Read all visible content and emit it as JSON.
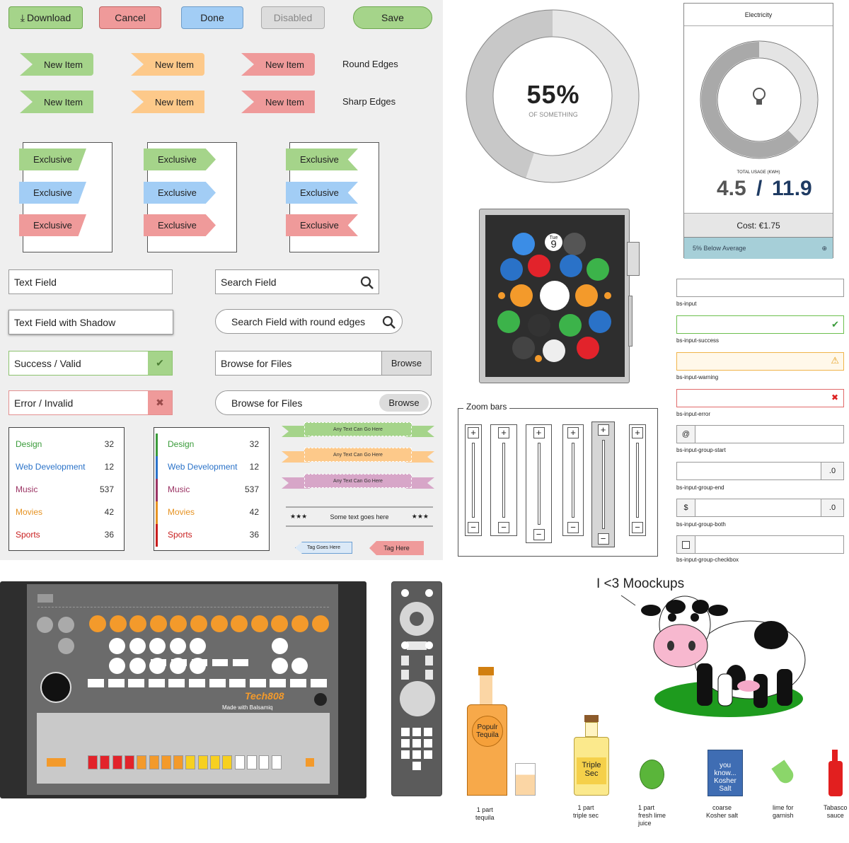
{
  "buttons": {
    "download": "Download",
    "cancel": "Cancel",
    "done": "Done",
    "disabled": "Disabled",
    "save": "Save"
  },
  "tags": {
    "label": "New Item",
    "round": "Round Edges",
    "sharp": "Sharp Edges"
  },
  "exclusive": "Exclusive",
  "fields": {
    "text": "Text Field",
    "search": "Search Field",
    "shadow": "Text Field with Shadow",
    "search_round": "Search Field with round edges",
    "success": "Success / Valid",
    "browse1": "Browse for Files",
    "browse_btn": "Browse",
    "error": "Error / Invalid",
    "browse2": "Browse for Files"
  },
  "list": [
    {
      "label": "Design",
      "count": "32",
      "color": "#3a9b3a"
    },
    {
      "label": "Web Development",
      "count": "12",
      "color": "#2a72c8"
    },
    {
      "label": "Music",
      "count": "537",
      "color": "#9b3464"
    },
    {
      "label": "Movies",
      "count": "42",
      "color": "#e69323"
    },
    {
      "label": "Sports",
      "count": "36",
      "color": "#c81e1e"
    }
  ],
  "ribbons": {
    "text": "Any Text Can Go Here",
    "stars": "Some text goes here",
    "tag1": "Tag Goes Here",
    "tag2": "Tag Here"
  },
  "donut": {
    "value": "55%",
    "sub": "OF SOMETHING",
    "percent": 55
  },
  "electricity": {
    "title": "Electricity",
    "usage_label": "TOTAL USAGE (KWH)",
    "used": "4.5",
    "sep": "/",
    "total": "11.9",
    "cost": "Cost: €1.75",
    "footer": "5% Below Average"
  },
  "watch": {
    "day": "Tue",
    "date": "9"
  },
  "zoom": {
    "title": "Zoom bars"
  },
  "bs": {
    "input": "bs-input",
    "success": "bs-input-success",
    "warning": "bs-input-warning",
    "error": "bs-input-error",
    "start": "bs-input-group-start",
    "start_addon": "@",
    "end": "bs-input-group-end",
    "end_addon": ".0",
    "both": "bs-input-group-both",
    "both_start": "$",
    "both_end": ".0",
    "checkbox": "bs-input-group-checkbox"
  },
  "drum": {
    "brand": "Tech808",
    "made": "Made with Balsamiq"
  },
  "cocktail": {
    "title": "I <3 Moockups",
    "bottle1": "Populr\nTequila",
    "bottle2": "Triple\nSec",
    "salt_box": "you know...\nKosher\nSalt",
    "captions": [
      "1 part\ntequila",
      "1 part\ntriple sec",
      "1 part\nfresh lime\njuice",
      "coarse\nKosher salt",
      "lime for\ngarnish",
      "Tabasco\nsauce"
    ]
  },
  "colors": {
    "green": "#a5d48a",
    "orange": "#fdc98a",
    "red": "#ef9a9a",
    "blue": "#a2cdf5",
    "gray": "#dcdcdc"
  }
}
